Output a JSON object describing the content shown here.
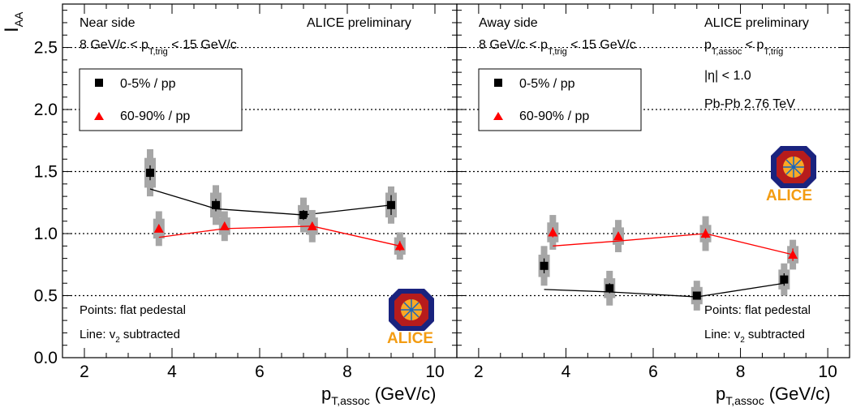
{
  "figure": {
    "y_axis_title": {
      "main": "I",
      "sub": "AA"
    },
    "x_axis_title": {
      "main": "p",
      "sub": "T,assoc",
      "unit": "(GeV/c)"
    }
  },
  "chart_data": [
    {
      "type": "scatter",
      "panel": "left",
      "xlim": [
        1.5,
        10.5
      ],
      "ylim": [
        0,
        2.85
      ],
      "x_ticks": [
        2,
        4,
        6,
        8,
        10
      ],
      "x_tick_labels": [
        "2",
        "4",
        "6",
        "8",
        "10"
      ],
      "y_ticks": [
        0,
        0.5,
        1,
        1.5,
        2,
        2.5
      ],
      "y_tick_labels": [
        "0.0",
        "0.5",
        "1.0",
        "1.5",
        "2.0",
        "2.5"
      ],
      "dotted_lines_y": [
        0.5,
        1,
        1.5,
        2,
        2.5
      ],
      "texts": {
        "side_label": "Near side",
        "trig": {
          "pre": "8 GeV/c < p",
          "sub": "T,trig",
          "post": " < 15 GeV/c"
        },
        "preliminary": "ALICE preliminary",
        "legend_0": "0-5% / pp",
        "legend_1": "60-90% / pp",
        "note_points": "Points: flat pedestal",
        "note_line": {
          "pre": "Line: v",
          "sub": "2",
          "post": " subtracted"
        },
        "logo": "ALICE"
      },
      "series": [
        {
          "name": "0-5% / pp",
          "marker": "square",
          "color": "#000000",
          "x": [
            3.5,
            5,
            7,
            9
          ],
          "y": [
            1.49,
            1.23,
            1.15,
            1.23
          ],
          "stat_err": [
            0.06,
            0.05,
            0.04,
            0.08
          ],
          "syst_inner": [
            0.12,
            0.1,
            0.08,
            0.1
          ],
          "syst_outer": [
            0.19,
            0.16,
            0.14,
            0.15
          ],
          "line_x": [
            3.5,
            5,
            7,
            9
          ],
          "line_y": [
            1.36,
            1.2,
            1.15,
            1.23
          ]
        },
        {
          "name": "60-90% / pp",
          "marker": "triangle",
          "color": "#ff0000",
          "x": [
            3.7,
            5.2,
            7.2,
            9.2
          ],
          "y": [
            1.04,
            1.06,
            1.06,
            0.9
          ],
          "stat_err": [
            0.03,
            0.03,
            0.03,
            0.04
          ],
          "syst_inner": [
            0.08,
            0.07,
            0.07,
            0.07
          ],
          "syst_outer": [
            0.14,
            0.12,
            0.13,
            0.11
          ],
          "line_x": [
            3.7,
            5.2,
            7.2,
            9.2
          ],
          "line_y": [
            0.97,
            1.04,
            1.06,
            0.9
          ]
        }
      ]
    },
    {
      "type": "scatter",
      "panel": "right",
      "xlim": [
        1.5,
        10.5
      ],
      "ylim": [
        0,
        2.85
      ],
      "x_ticks": [
        2,
        4,
        6,
        8,
        10
      ],
      "x_tick_labels": [
        "2",
        "4",
        "6",
        "8",
        "10"
      ],
      "y_ticks": [
        0,
        0.5,
        1,
        1.5,
        2,
        2.5
      ],
      "dotted_lines_y": [
        0.5,
        1,
        1.5,
        2,
        2.5
      ],
      "texts": {
        "side_label": "Away side",
        "trig": {
          "pre": "8 GeV/c < p",
          "sub": "T,trig",
          "post": " < 15 GeV/c"
        },
        "preliminary": "ALICE preliminary",
        "assoc_cond": {
          "p1": "p",
          "sub1": "T,assoc",
          "mid": " < p",
          "sub2": "T,trig"
        },
        "eta": "|η| < 1.0",
        "system": "Pb-Pb 2.76 TeV",
        "legend_0": "0-5% / pp",
        "legend_1": "60-90% / pp",
        "note_points": "Points: flat pedestal",
        "note_line": {
          "pre": "Line: v",
          "sub": "2",
          "post": " subtracted"
        },
        "logo": "ALICE"
      },
      "series": [
        {
          "name": "0-5% / pp",
          "marker": "square",
          "color": "#000000",
          "x": [
            3.5,
            5,
            7,
            9
          ],
          "y": [
            0.74,
            0.56,
            0.5,
            0.63
          ],
          "stat_err": [
            0.06,
            0.04,
            0.03,
            0.05
          ],
          "syst_inner": [
            0.09,
            0.08,
            0.07,
            0.08
          ],
          "syst_outer": [
            0.16,
            0.14,
            0.12,
            0.13
          ],
          "line_x": [
            3.5,
            5,
            7,
            9
          ],
          "line_y": [
            0.55,
            0.53,
            0.49,
            0.6
          ]
        },
        {
          "name": "60-90% / pp",
          "marker": "triangle",
          "color": "#ff0000",
          "x": [
            3.7,
            5.2,
            7.2,
            9.2
          ],
          "y": [
            1.01,
            0.98,
            1.0,
            0.83
          ],
          "stat_err": [
            0.04,
            0.03,
            0.04,
            0.05
          ],
          "syst_inner": [
            0.08,
            0.07,
            0.07,
            0.07
          ],
          "syst_outer": [
            0.14,
            0.13,
            0.14,
            0.12
          ],
          "line_x": [
            3.7,
            5.2,
            7.2,
            9.2
          ],
          "line_y": [
            0.9,
            0.94,
            1.0,
            0.83
          ]
        }
      ]
    }
  ]
}
